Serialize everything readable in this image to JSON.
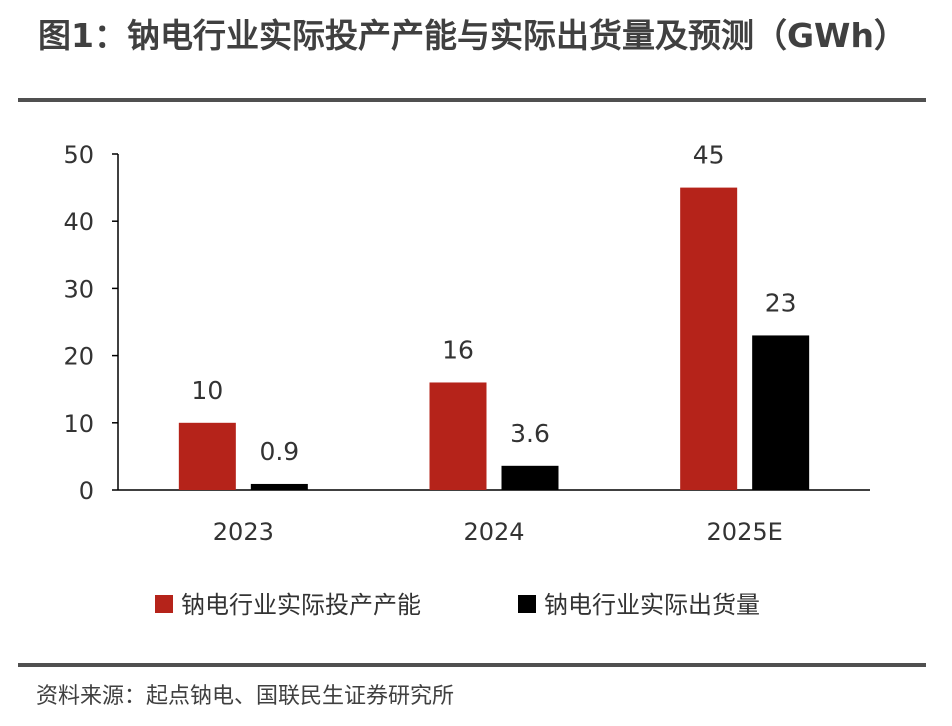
{
  "title": "图1：钠电行业实际投产产能与实际出货量及预测（GWh）",
  "source": "资料来源：起点钠电、国联民生证券研究所",
  "chart_data": {
    "type": "bar",
    "title": "图1：钠电行业实际投产产能与实际出货量及预测（GWh）",
    "xlabel": "",
    "ylabel": "",
    "categories": [
      "2023",
      "2024",
      "2025E"
    ],
    "series": [
      {
        "name": "钠电行业实际投产产能",
        "values": [
          10,
          16,
          45
        ],
        "labels": [
          "10",
          "16",
          "45"
        ],
        "color": "#B5231A"
      },
      {
        "name": "钠电行业实际出货量",
        "values": [
          0.9,
          3.6,
          23
        ],
        "labels": [
          "0.9",
          "3.6",
          "23"
        ],
        "color": "#000000"
      }
    ],
    "ylim": [
      0,
      50
    ],
    "yticks": [
      0,
      10,
      20,
      30,
      40,
      50
    ],
    "grid": false,
    "legend_position": "bottom"
  }
}
